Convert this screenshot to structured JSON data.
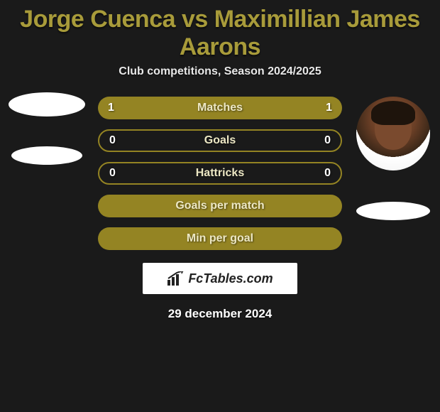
{
  "header": {
    "title": "Jorge Cuenca vs Maximillian James Aarons",
    "title_color": "#a89b3a",
    "subtitle": "Club competitions, Season 2024/2025"
  },
  "background_color": "#1a1a1a",
  "stats": {
    "label_color": "#ece7c4",
    "rows": [
      {
        "label": "Matches",
        "left": "1",
        "right": "1",
        "fill_left": "#948423",
        "fill_right": "#948423",
        "left_pct": 50,
        "right_pct": 50,
        "border": null
      },
      {
        "label": "Goals",
        "left": "0",
        "right": "0",
        "fill_left": null,
        "fill_right": null,
        "left_pct": 0,
        "right_pct": 0,
        "border": "#948423"
      },
      {
        "label": "Hattricks",
        "left": "0",
        "right": "0",
        "fill_left": null,
        "fill_right": null,
        "left_pct": 0,
        "right_pct": 0,
        "border": "#948423"
      },
      {
        "label": "Goals per match",
        "left": "",
        "right": "",
        "fill_left": "#948423",
        "fill_right": "#948423",
        "left_pct": 50,
        "right_pct": 50,
        "border": null
      },
      {
        "label": "Min per goal",
        "left": "",
        "right": "",
        "fill_left": "#948423",
        "fill_right": "#948423",
        "left_pct": 50,
        "right_pct": 50,
        "border": null
      }
    ]
  },
  "players": {
    "left": {
      "name": "Jorge Cuenca",
      "has_photo": false
    },
    "right": {
      "name": "Maximillian James Aarons",
      "has_photo": true
    }
  },
  "branding": {
    "site_name": "FcTables.com",
    "icon": "bar-chart-icon"
  },
  "date_line": "29 december 2024"
}
